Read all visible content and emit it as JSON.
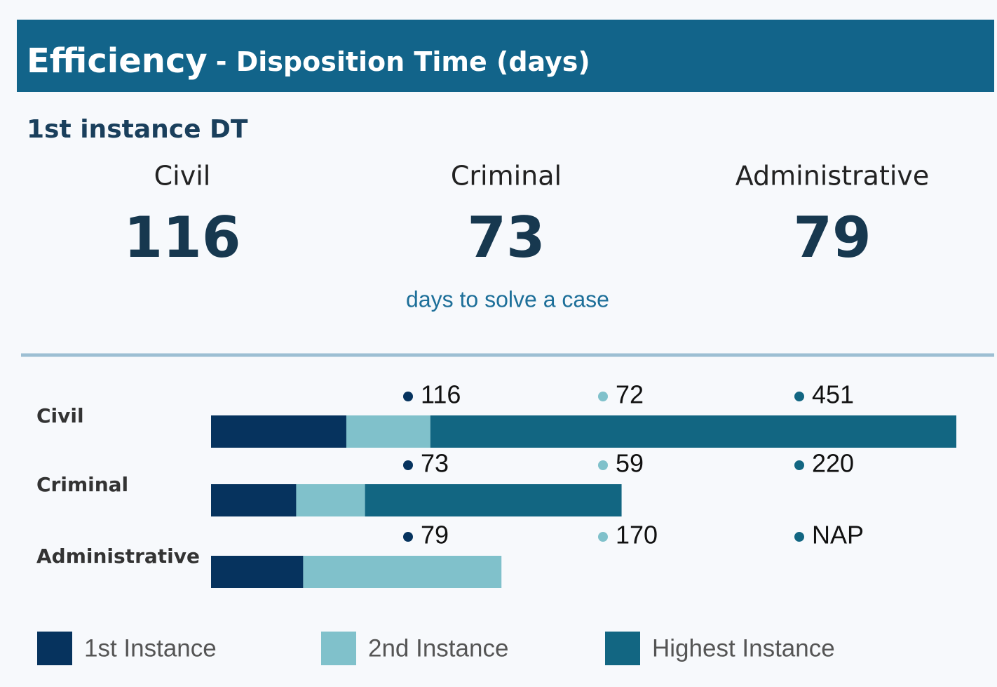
{
  "header": {
    "title": "Efficiency",
    "subtitle": "- Disposition Time (days)"
  },
  "kpi": {
    "title": "1st instance DT",
    "items": [
      {
        "label": "Civil",
        "value": 116
      },
      {
        "label": "Criminal",
        "value": 73
      },
      {
        "label": "Administrative",
        "value": 79
      }
    ],
    "caption": "days to solve a case"
  },
  "chart_data": {
    "type": "stacked-bar-horizontal",
    "categories": [
      "Civil",
      "Criminal",
      "Administrative"
    ],
    "series": [
      {
        "name": "1st Instance",
        "color": "#06335e",
        "values": [
          116,
          73,
          79
        ]
      },
      {
        "name": "2nd Instance",
        "color": "#80c1cb",
        "values": [
          72,
          59,
          170
        ]
      },
      {
        "name": "Highest Instance",
        "color": "#126682",
        "values": [
          451,
          220,
          null
        ],
        "value_labels": [
          "451",
          "220",
          "NAP"
        ]
      }
    ],
    "legend": "bottom"
  }
}
